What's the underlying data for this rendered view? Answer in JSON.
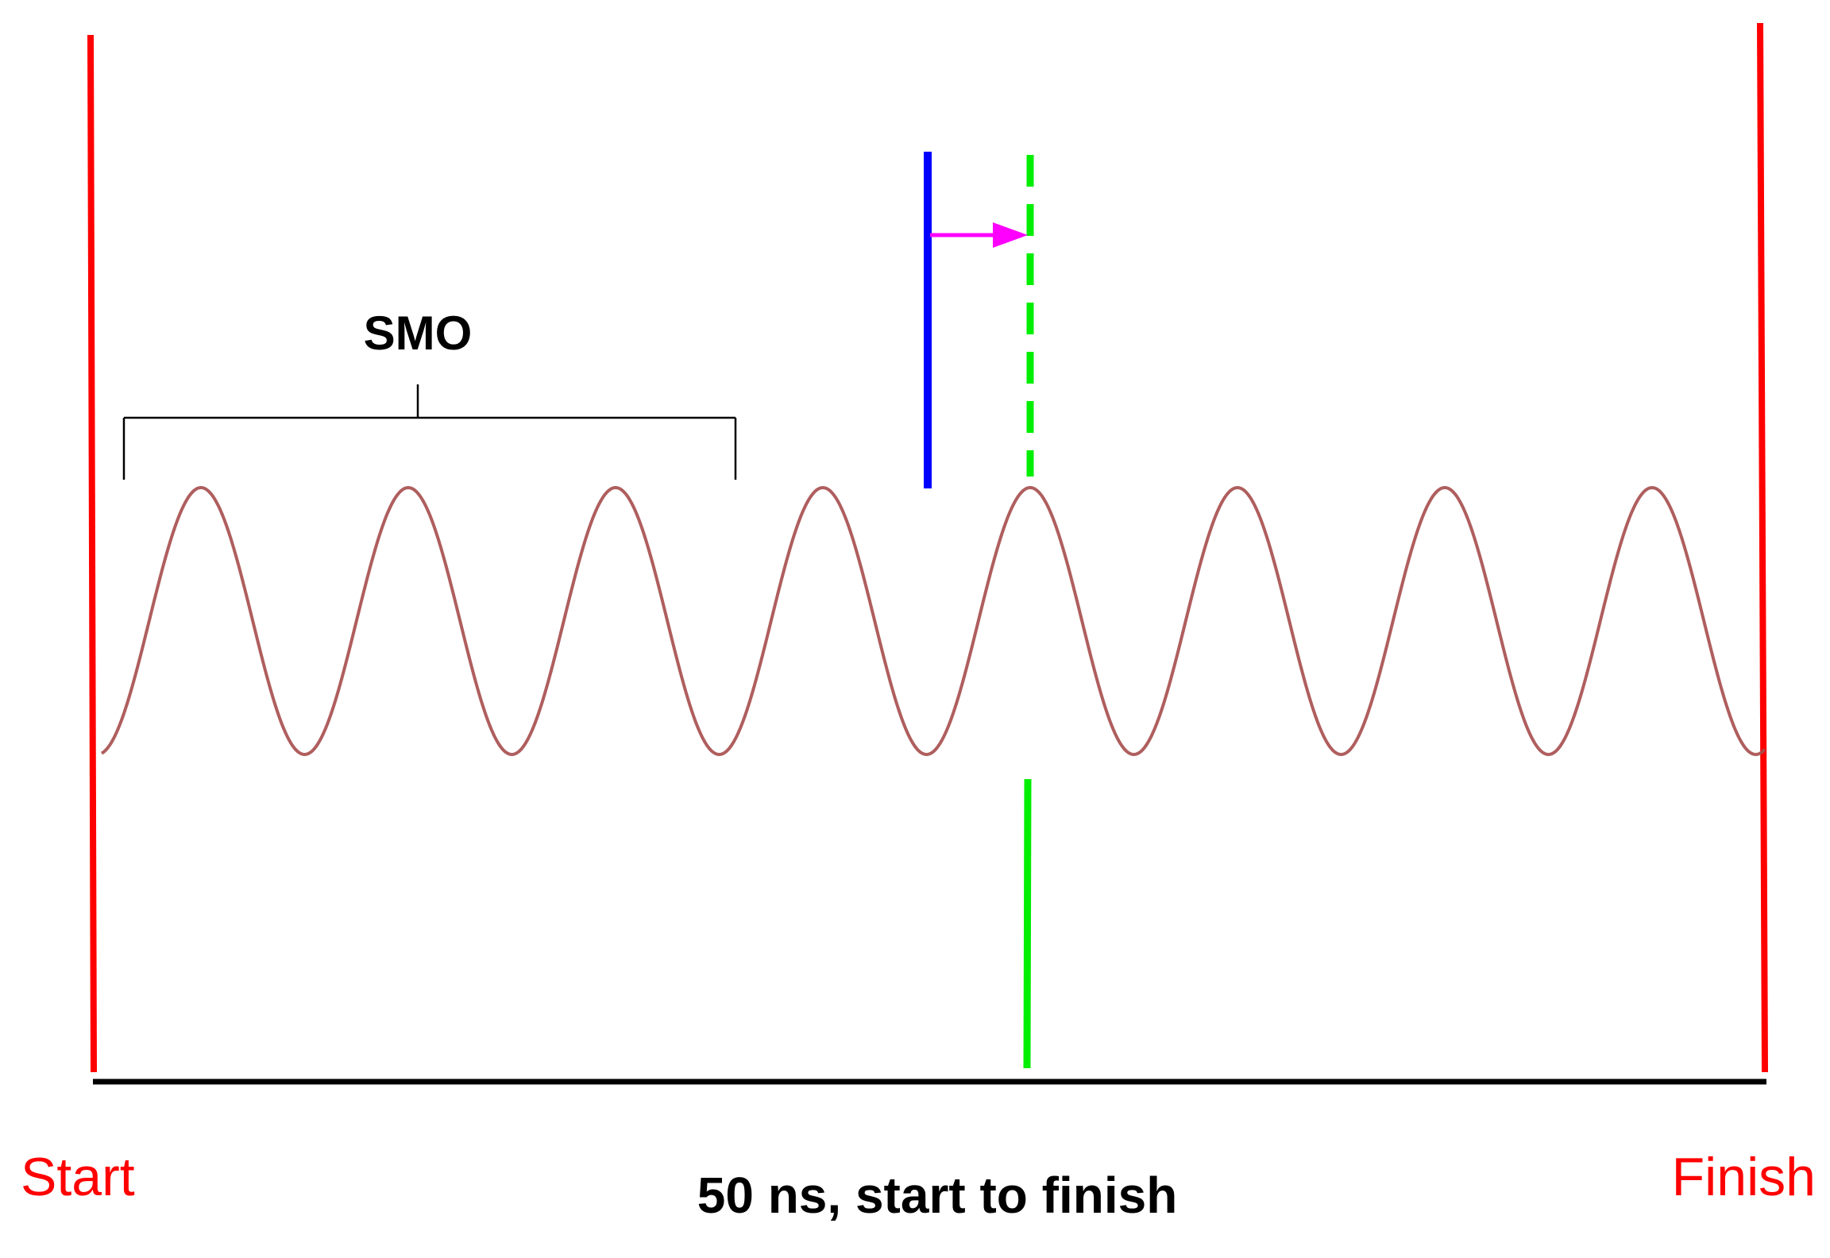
{
  "labels": {
    "bracket": "SMO",
    "start": "Start",
    "finish": "Finish",
    "caption": "50 ns, start to finish"
  }
}
